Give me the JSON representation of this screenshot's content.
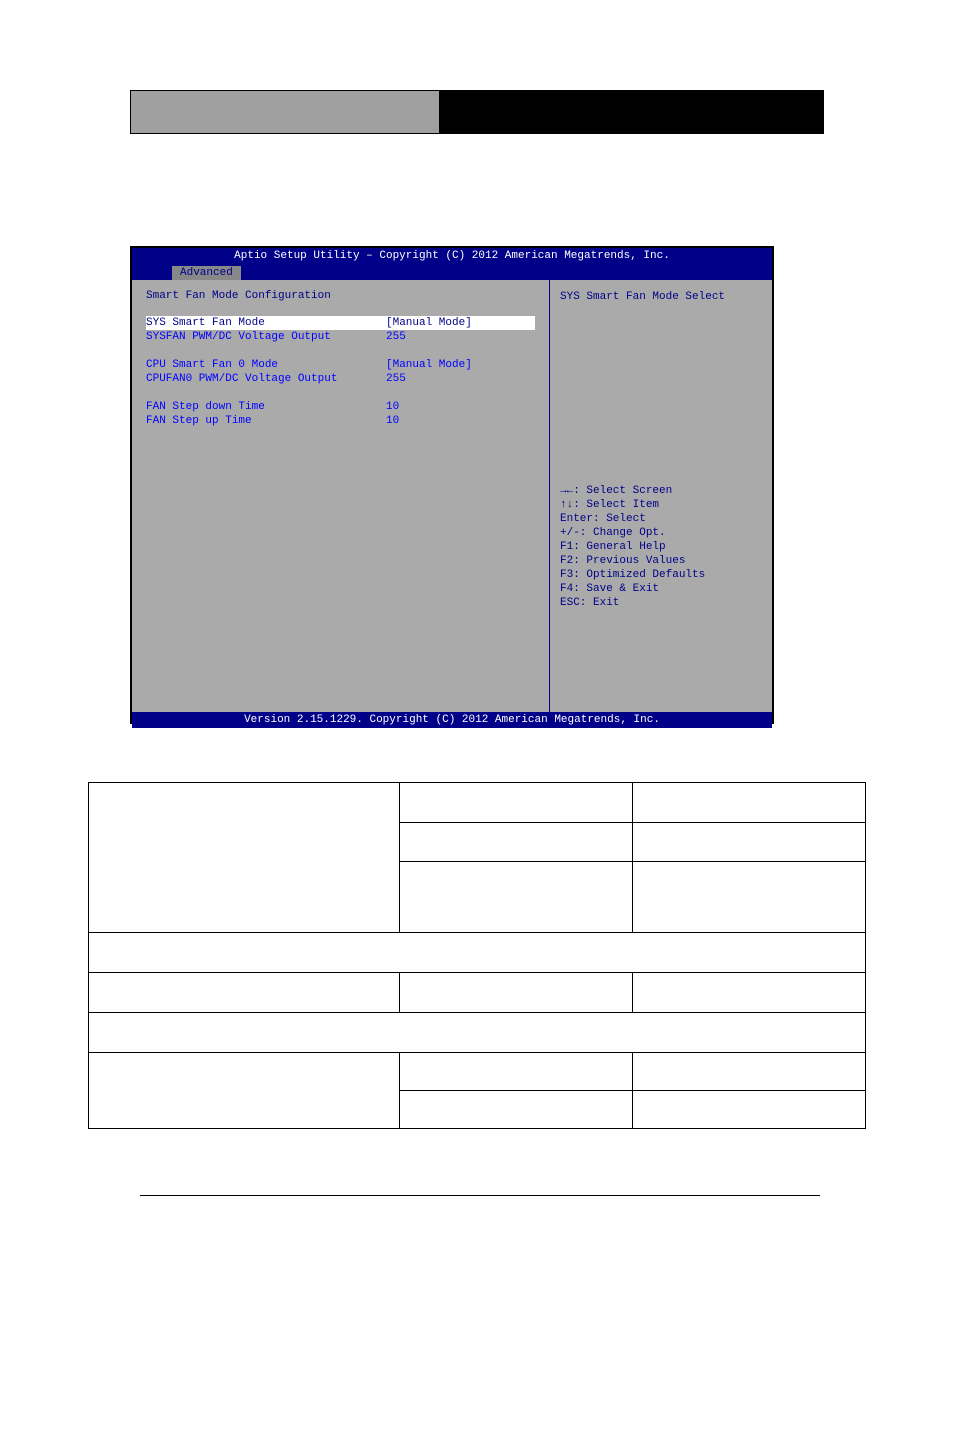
{
  "header_bar": {
    "left_bg": "#a0a0a0",
    "right_bg": "#000000"
  },
  "bios": {
    "top_bar": "Aptio Setup Utility – Copyright (C) 2012 American Megatrends, Inc.",
    "tab": "Advanced",
    "heading": "Smart Fan Mode Configuration",
    "rows": [
      {
        "label": "SYS Smart Fan Mode",
        "value": "[Manual Mode]",
        "highlighted": true
      },
      {
        "label": "SYSFAN PWM/DC Voltage Output",
        "value": "255"
      },
      {
        "spacer": true
      },
      {
        "label": "CPU Smart Fan 0 Mode",
        "value": "[Manual Mode]"
      },
      {
        "label": "CPUFAN0 PWM/DC Voltage Output",
        "value": "255"
      },
      {
        "spacer": true
      },
      {
        "label": "FAN Step down Time",
        "value": "10"
      },
      {
        "label": "FAN Step up Time",
        "value": "10"
      }
    ],
    "side_help": "SYS Smart Fan Mode Select",
    "nav_help": [
      "→←: Select Screen",
      "↑↓: Select Item",
      "Enter: Select",
      "+/-: Change Opt.",
      "F1: General Help",
      "F2: Previous Values",
      "F3: Optimized Defaults",
      "F4: Save & Exit",
      "ESC: Exit"
    ],
    "bottom_bar": "Version 2.15.1229. Copyright (C) 2012 American Megatrends, Inc.",
    "colors": {
      "bar_bg": "#000088",
      "bar_fg": "#ffffff",
      "panel_bg": "#aaaaaa",
      "text_blue": "#0000ff",
      "text_navy": "#000088",
      "highlight_bg": "#ffffff"
    }
  },
  "table": {
    "rows": [
      {
        "type": "multi",
        "c1_rowspan": 3,
        "c1": "",
        "cells": [
          [
            "",
            ""
          ],
          [
            "",
            ""
          ],
          [
            "",
            ""
          ]
        ]
      },
      {
        "type": "full",
        "text": ""
      },
      {
        "type": "single",
        "c1": "",
        "c2": "",
        "c3": ""
      },
      {
        "type": "full",
        "text": ""
      },
      {
        "type": "multi",
        "c1_rowspan": 2,
        "c1": "",
        "cells": [
          [
            "",
            ""
          ],
          [
            "",
            ""
          ]
        ]
      }
    ],
    "border_color": "#000000"
  }
}
